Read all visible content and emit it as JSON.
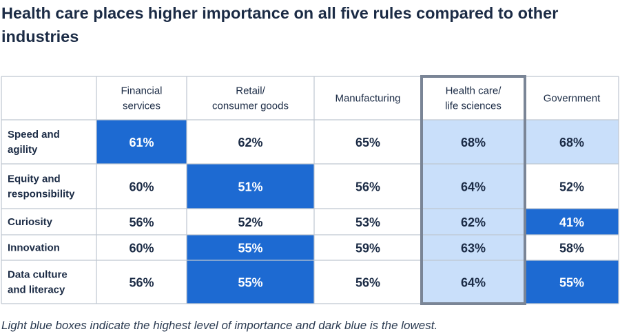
{
  "title": "Health care places higher importance on all five rules compared to other industries",
  "note": "Light blue boxes indicate the highest level of importance and dark blue is the lowest.",
  "colors": {
    "highest": "#c9dffa",
    "lowest": "#1d6ad2",
    "border": "#bfc6d0",
    "highlight_border": "#7a8596",
    "text": "#1b2b45",
    "text_on_dark": "#ffffff"
  },
  "chart_data": {
    "type": "table",
    "title": "Health care places higher importance on all five rules compared to other industries",
    "columns": [
      {
        "label": [
          "Financial",
          "services"
        ]
      },
      {
        "label": [
          "Retail/",
          "consumer goods"
        ]
      },
      {
        "label": [
          "Manufacturing"
        ]
      },
      {
        "label": [
          "Health care/",
          "life sciences"
        ],
        "outlined": true
      },
      {
        "label": [
          "Government"
        ]
      }
    ],
    "rows": [
      {
        "label": [
          "Speed and",
          "agility"
        ],
        "values": [
          "61%",
          "62%",
          "65%",
          "68%",
          "68%"
        ],
        "shading": [
          "low",
          "none",
          "none",
          "high",
          "high"
        ]
      },
      {
        "label": [
          "Equity and",
          "responsibility"
        ],
        "values": [
          "60%",
          "51%",
          "56%",
          "64%",
          "52%"
        ],
        "shading": [
          "none",
          "low",
          "none",
          "high",
          "none"
        ]
      },
      {
        "label": [
          "Curiosity"
        ],
        "values": [
          "56%",
          "52%",
          "53%",
          "62%",
          "41%"
        ],
        "shading": [
          "none",
          "none",
          "none",
          "high",
          "low"
        ]
      },
      {
        "label": [
          "Innovation"
        ],
        "values": [
          "60%",
          "55%",
          "59%",
          "63%",
          "58%"
        ],
        "shading": [
          "none",
          "low",
          "none",
          "high",
          "none"
        ]
      },
      {
        "label": [
          "Data culture",
          "and literacy"
        ],
        "values": [
          "56%",
          "55%",
          "56%",
          "64%",
          "55%"
        ],
        "shading": [
          "none",
          "low",
          "none",
          "high",
          "low"
        ]
      }
    ]
  }
}
